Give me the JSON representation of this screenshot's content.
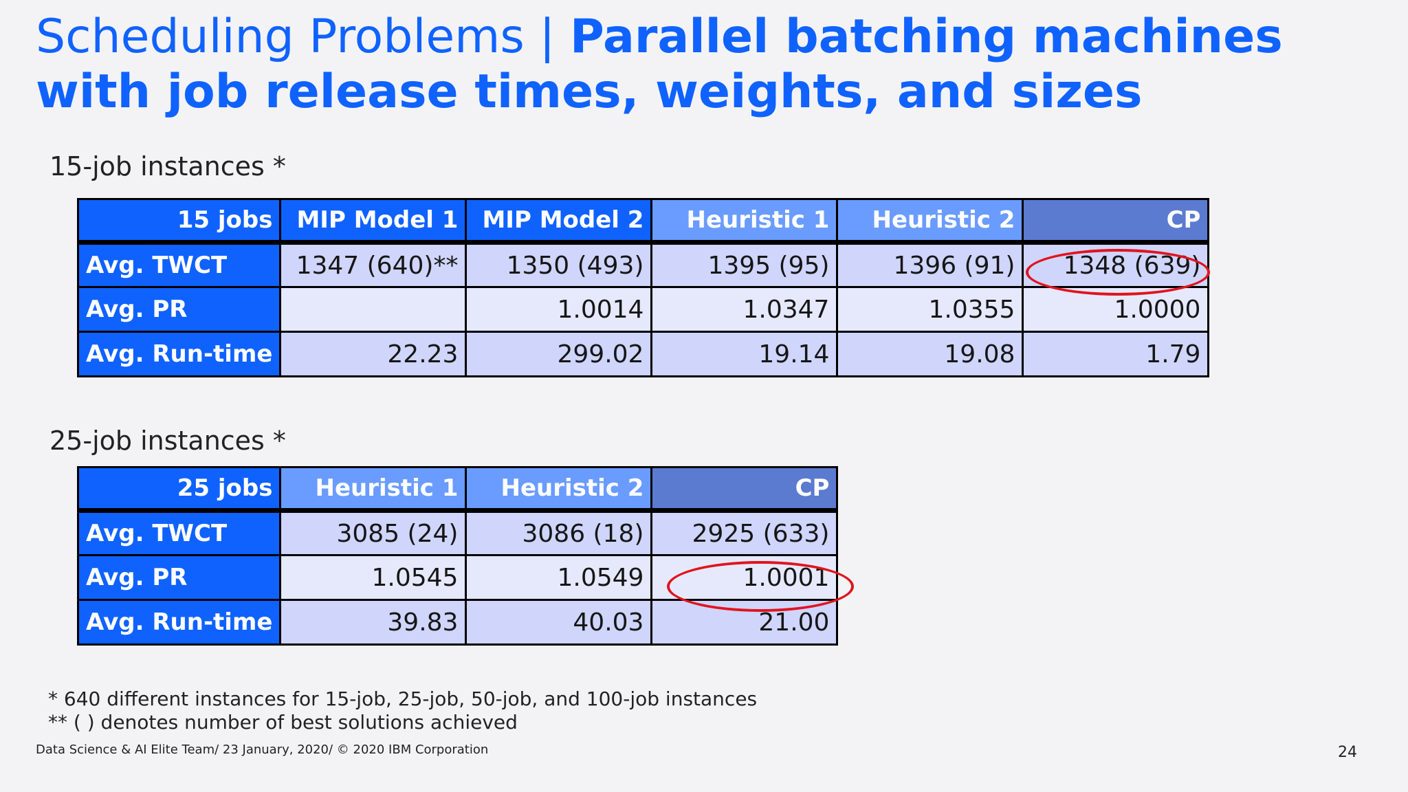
{
  "slide": {
    "title_prefix": "Scheduling Problems | ",
    "title_main": "Parallel batching machines with job release times, weights, and sizes",
    "page_number": "24",
    "footer": "Data Science & AI Elite Team/ 23 January, 2020/ © 2020 IBM Corporation",
    "colors": {
      "accent": "#0f62fe",
      "highlight": "#e0141e"
    }
  },
  "table15": {
    "label": "15-job instances *",
    "headers": [
      "15 jobs",
      "MIP Model 1",
      "MIP Model 2",
      "Heuristic 1",
      "Heuristic 2",
      "CP"
    ],
    "rows": [
      {
        "label": "Avg. TWCT",
        "values": [
          "1347 (640)**",
          "1350 (493)",
          "1395 (95)",
          "1396 (91)",
          "1348 (639)"
        ]
      },
      {
        "label": "Avg. PR",
        "values": [
          "",
          "1.0014",
          "1.0347",
          "1.0355",
          "1.0000"
        ]
      },
      {
        "label": "Avg. Run-time",
        "values": [
          "22.23",
          "299.02",
          "19.14",
          "19.08",
          "1.79"
        ]
      }
    ]
  },
  "table25": {
    "label": "25-job instances *",
    "headers": [
      "25 jobs",
      "Heuristic 1",
      "Heuristic 2",
      "CP"
    ],
    "rows": [
      {
        "label": "Avg. TWCT",
        "values": [
          "3085 (24)",
          "3086 (18)",
          "2925 (633)"
        ]
      },
      {
        "label": "Avg. PR",
        "values": [
          "1.0545",
          "1.0549",
          "1.0001"
        ]
      },
      {
        "label": "Avg. Run-time",
        "values": [
          "39.83",
          "40.03",
          "21.00"
        ]
      }
    ]
  },
  "footnotes": {
    "line1": "* 640 different instances for 15-job, 25-job, 50-job, and 100-job instances",
    "line2": "** ( ) denotes number of best solutions achieved"
  }
}
